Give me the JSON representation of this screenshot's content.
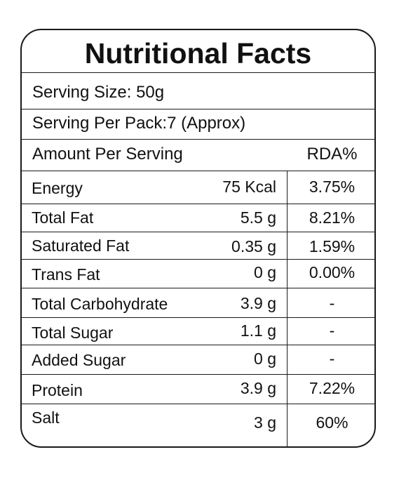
{
  "title": "Nutritional Facts",
  "serving_size": "Serving Size: 50g",
  "serving_per_pack": "Serving Per Pack:7 (Approx)",
  "header": {
    "amount_label": "Amount Per Serving",
    "rda_label": "RDA%"
  },
  "rows": [
    {
      "name": "Energy",
      "amount": "75 Kcal",
      "rda": "3.75%"
    },
    {
      "name": "Total Fat",
      "amount": "5.5 g",
      "rda": "8.21%"
    },
    {
      "name": "Saturated Fat",
      "amount": "0.35 g",
      "rda": "1.59%"
    },
    {
      "name": "Trans Fat",
      "amount": "0 g",
      "rda": "0.00%"
    },
    {
      "name": "Total Carbohydrate",
      "amount": "3.9 g",
      "rda": "-"
    },
    {
      "name": "Total Sugar",
      "amount": "1.1 g",
      "rda": "-"
    },
    {
      "name": "Added Sugar",
      "amount": "0 g",
      "rda": "-"
    },
    {
      "name": "Protein",
      "amount": "3.9 g",
      "rda": "7.22%"
    },
    {
      "name": "Salt",
      "amount": "3 g",
      "rda": "60%"
    }
  ]
}
